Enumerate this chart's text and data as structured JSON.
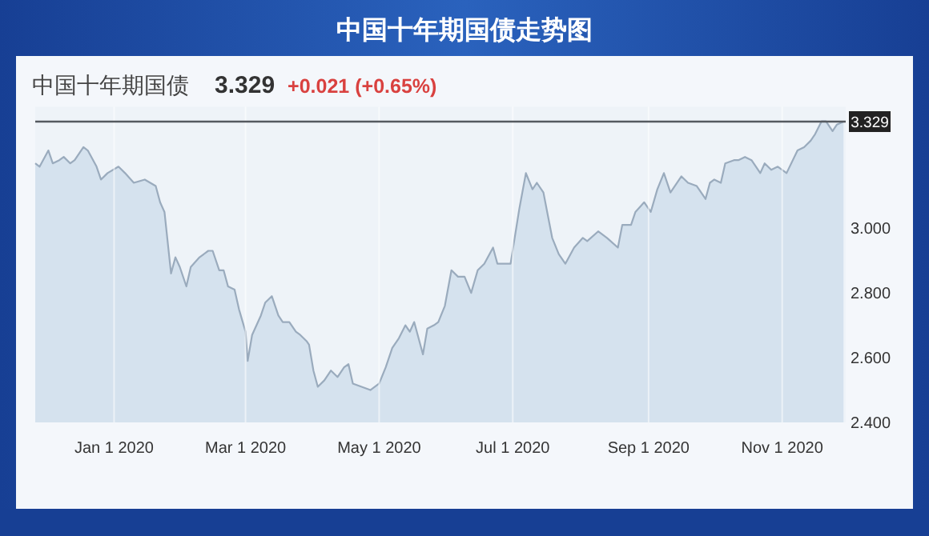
{
  "chart_data": {
    "type": "area",
    "title": "中国十年期国债走势图",
    "subtitle": "中国十年期国债",
    "annotations": [
      "3.329",
      "+0.021 (+0.65%)"
    ],
    "series": [
      {
        "color": "#9aabbd",
        "x": [
          "2019-11-26",
          "2019-11-28",
          "2019-12-02",
          "2019-12-04",
          "2019-12-07",
          "2019-12-09",
          "2019-12-12",
          "2019-12-14",
          "2019-12-18",
          "2019-12-20",
          "2019-12-24",
          "2019-12-26",
          "2019-12-29",
          "2020-01-03",
          "2020-01-06",
          "2020-01-10",
          "2020-01-15",
          "2020-01-20",
          "2020-01-22",
          "2020-01-24",
          "2020-01-27",
          "2020-01-29",
          "2020-01-31",
          "2020-02-03",
          "2020-02-05",
          "2020-02-09",
          "2020-02-13",
          "2020-02-15",
          "2020-02-18",
          "2020-02-20",
          "2020-02-22",
          "2020-02-25",
          "2020-02-27",
          "2020-03-01",
          "2020-03-02",
          "2020-03-04",
          "2020-03-08",
          "2020-03-10",
          "2020-03-13",
          "2020-03-16",
          "2020-03-18",
          "2020-03-21",
          "2020-03-24",
          "2020-03-26",
          "2020-03-29",
          "2020-03-30",
          "2020-04-01",
          "2020-04-03",
          "2020-04-06",
          "2020-04-09",
          "2020-04-12",
          "2020-04-15",
          "2020-04-17",
          "2020-04-19",
          "2020-04-23",
          "2020-04-27",
          "2020-05-01",
          "2020-05-04",
          "2020-05-07",
          "2020-05-10",
          "2020-05-13",
          "2020-05-15",
          "2020-05-17",
          "2020-05-21",
          "2020-05-23",
          "2020-05-26",
          "2020-05-28",
          "2020-05-31",
          "2020-06-03",
          "2020-06-06",
          "2020-06-09",
          "2020-06-12",
          "2020-06-15",
          "2020-06-18",
          "2020-06-22",
          "2020-06-24",
          "2020-06-27",
          "2020-06-30",
          "2020-07-04",
          "2020-07-07",
          "2020-07-10",
          "2020-07-12",
          "2020-07-15",
          "2020-07-17",
          "2020-07-19",
          "2020-07-22",
          "2020-07-25",
          "2020-07-29",
          "2020-08-02",
          "2020-08-04",
          "2020-08-09",
          "2020-08-13",
          "2020-08-18",
          "2020-08-20",
          "2020-08-24",
          "2020-08-26",
          "2020-08-30",
          "2020-09-02",
          "2020-09-05",
          "2020-09-08",
          "2020-09-11",
          "2020-09-16",
          "2020-09-19",
          "2020-09-23",
          "2020-09-27",
          "2020-09-29",
          "2020-10-01",
          "2020-10-04",
          "2020-10-06",
          "2020-10-10",
          "2020-10-12",
          "2020-10-15",
          "2020-10-18",
          "2020-10-22",
          "2020-10-24",
          "2020-10-27",
          "2020-10-30",
          "2020-11-03",
          "2020-11-08",
          "2020-11-11",
          "2020-11-14",
          "2020-11-16",
          "2020-11-19",
          "2020-11-21",
          "2020-11-24",
          "2020-11-26",
          "2020-11-29"
        ],
        "values": [
          3.2,
          3.19,
          3.24,
          3.2,
          3.21,
          3.22,
          3.2,
          3.21,
          3.25,
          3.24,
          3.19,
          3.15,
          3.17,
          3.19,
          3.17,
          3.14,
          3.15,
          3.13,
          3.08,
          3.05,
          2.86,
          2.91,
          2.88,
          2.82,
          2.88,
          2.91,
          2.93,
          2.93,
          2.87,
          2.87,
          2.82,
          2.81,
          2.75,
          2.68,
          2.59,
          2.67,
          2.73,
          2.77,
          2.79,
          2.73,
          2.71,
          2.71,
          2.68,
          2.67,
          2.65,
          2.64,
          2.56,
          2.51,
          2.53,
          2.56,
          2.54,
          2.57,
          2.58,
          2.52,
          2.51,
          2.5,
          2.52,
          2.57,
          2.63,
          2.66,
          2.7,
          2.68,
          2.71,
          2.61,
          2.69,
          2.7,
          2.71,
          2.76,
          2.87,
          2.85,
          2.85,
          2.8,
          2.87,
          2.89,
          2.94,
          2.89,
          2.89,
          2.89,
          3.06,
          3.17,
          3.12,
          3.14,
          3.11,
          3.04,
          2.97,
          2.92,
          2.89,
          2.94,
          2.97,
          2.96,
          2.99,
          2.97,
          2.94,
          3.01,
          3.01,
          3.05,
          3.08,
          3.05,
          3.12,
          3.17,
          3.11,
          3.16,
          3.14,
          3.13,
          3.09,
          3.14,
          3.15,
          3.14,
          3.2,
          3.21,
          3.21,
          3.22,
          3.21,
          3.17,
          3.2,
          3.18,
          3.19,
          3.17,
          3.24,
          3.25,
          3.27,
          3.29,
          3.33,
          3.33,
          3.3,
          3.32,
          3.329
        ]
      }
    ],
    "xlim": [
      "2019-11-26",
      "2020-11-30"
    ],
    "xticks": [
      {
        "value": "2020-01-01",
        "label": "Jan 1 2020"
      },
      {
        "value": "2020-03-01",
        "label": "Mar 1 2020"
      },
      {
        "value": "2020-05-01",
        "label": "May 1 2020"
      },
      {
        "value": "2020-07-01",
        "label": "Jul 1 2020"
      },
      {
        "value": "2020-09-01",
        "label": "Sep 1 2020"
      },
      {
        "value": "2020-11-01",
        "label": "Nov 1 2020"
      }
    ],
    "ylim": [
      2.4,
      3.375
    ],
    "yticks": [
      {
        "value": 2.4,
        "label": "2.400"
      },
      {
        "value": 2.6,
        "label": "2.600"
      },
      {
        "value": 2.8,
        "label": "2.800"
      },
      {
        "value": 3.0,
        "label": "3.000"
      }
    ],
    "ref_lines": [
      {
        "axis": "y",
        "value": 3.329,
        "label": "3.329",
        "color": "#555a60"
      }
    ],
    "grid": "x",
    "marker": "none"
  }
}
